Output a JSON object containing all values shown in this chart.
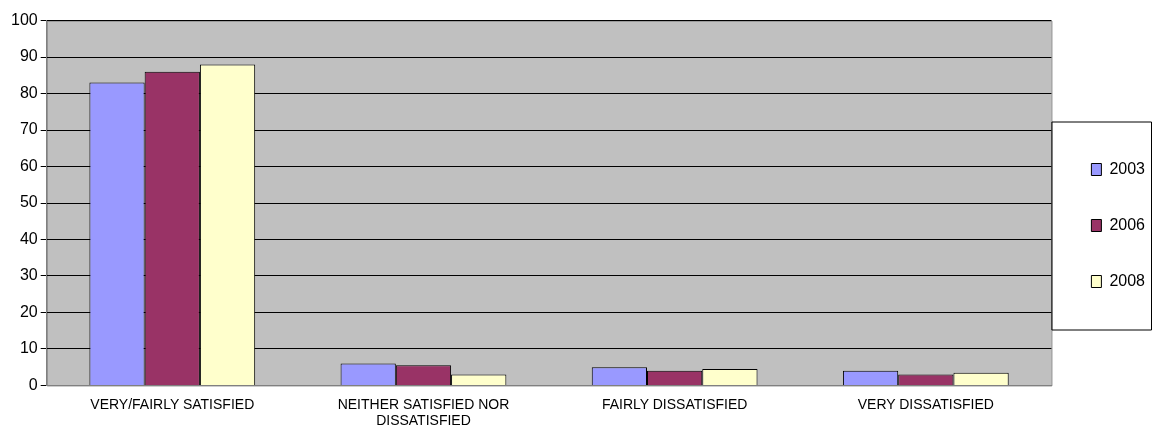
{
  "chart_data": {
    "type": "bar",
    "categories": [
      "VERY/FAIRLY SATISFIED",
      "NEITHER SATISFIED NOR DISSATISFIED",
      "FAIRLY DISSATISFIED",
      "VERY DISSATISFIED"
    ],
    "series": [
      {
        "name": "2003",
        "color": "#9999ff",
        "values": [
          83,
          6,
          5,
          4
        ]
      },
      {
        "name": "2006",
        "color": "#993366",
        "values": [
          86,
          5.5,
          4,
          3
        ]
      },
      {
        "name": "2008",
        "color": "#ffffcc",
        "values": [
          88,
          3,
          4.5,
          3.5
        ]
      }
    ],
    "ylim": [
      0,
      100
    ],
    "yticks": [
      0,
      10,
      20,
      30,
      40,
      50,
      60,
      70,
      80,
      90,
      100
    ],
    "grid": "y",
    "legend": "right"
  }
}
